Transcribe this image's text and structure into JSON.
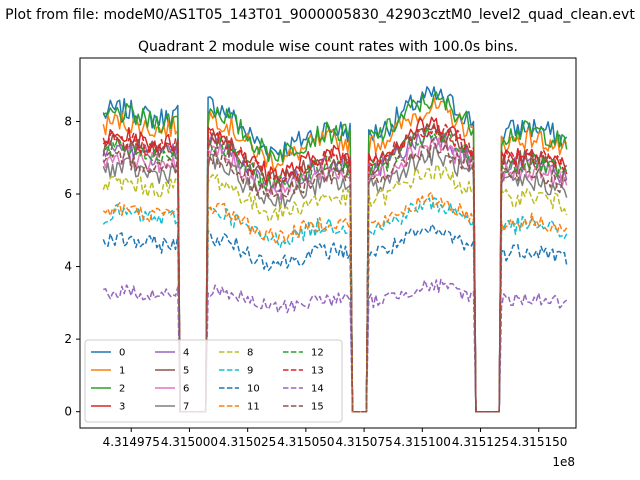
{
  "chart_data": {
    "type": "line",
    "suptitle": "Plot from file: modeM0/AS1T05_143T01_9000005830_42903cztM0_level2_quad_clean.evt",
    "title": "Quadrant 2 module wise count rates with 100.0s bins.",
    "xlabel": "",
    "ylabel": "",
    "x_offset_label": "1e8",
    "xlim": [
      4.314953,
      4.315166
    ],
    "ylim": [
      -0.45,
      9.75
    ],
    "xticks": [
      4.314975,
      4.315,
      4.315025,
      4.31505,
      4.315075,
      4.3151,
      4.315125,
      4.31515
    ],
    "xtick_labels": [
      "4.314975",
      "4.315000",
      "4.315025",
      "4.315050",
      "4.315075",
      "4.315100",
      "4.315125",
      "4.315150"
    ],
    "yticks": [
      0,
      2,
      4,
      6,
      8
    ],
    "ytick_labels": [
      "0",
      "2",
      "4",
      "6",
      "8"
    ],
    "x_range": [
      4.314963,
      4.315162
    ],
    "good_intervals": [
      [
        4.314963,
        4.314995
      ],
      [
        4.315008,
        4.315069
      ],
      [
        4.315077,
        4.315122
      ],
      [
        4.315134,
        4.315162
      ]
    ],
    "gaps": [
      [
        4.314995,
        4.315008
      ],
      [
        4.315069,
        4.315077
      ],
      [
        4.315122,
        4.315134
      ]
    ],
    "legend": {
      "location": "lower-left",
      "columns": 4
    },
    "series": [
      {
        "name": "0",
        "mean": 7.9,
        "noise": 0.32,
        "color": "#1f77b4",
        "dash": "solid"
      },
      {
        "name": "1",
        "mean": 7.6,
        "noise": 0.3,
        "color": "#ff7f0e",
        "dash": "solid"
      },
      {
        "name": "2",
        "mean": 7.8,
        "noise": 0.3,
        "color": "#2ca02c",
        "dash": "solid"
      },
      {
        "name": "3",
        "mean": 7.2,
        "noise": 0.28,
        "color": "#d62728",
        "dash": "solid"
      },
      {
        "name": "4",
        "mean": 6.9,
        "noise": 0.28,
        "color": "#9467bd",
        "dash": "solid"
      },
      {
        "name": "5",
        "mean": 7.0,
        "noise": 0.28,
        "color": "#8c564b",
        "dash": "solid"
      },
      {
        "name": "6",
        "mean": 6.7,
        "noise": 0.28,
        "color": "#e377c2",
        "dash": "solid"
      },
      {
        "name": "7",
        "mean": 6.4,
        "noise": 0.28,
        "color": "#7f7f7f",
        "dash": "solid"
      },
      {
        "name": "8",
        "mean": 6.0,
        "noise": 0.26,
        "color": "#bcbd22",
        "dash": "dashed"
      },
      {
        "name": "9",
        "mean": 5.2,
        "noise": 0.24,
        "color": "#17becf",
        "dash": "dashed"
      },
      {
        "name": "10",
        "mean": 4.5,
        "noise": 0.24,
        "color": "#1f77b4",
        "dash": "dashed"
      },
      {
        "name": "11",
        "mean": 5.3,
        "noise": 0.22,
        "color": "#ff7f0e",
        "dash": "dashed"
      },
      {
        "name": "12",
        "mean": 6.9,
        "noise": 0.26,
        "color": "#2ca02c",
        "dash": "dashed"
      },
      {
        "name": "13",
        "mean": 7.1,
        "noise": 0.26,
        "color": "#d62728",
        "dash": "dashed"
      },
      {
        "name": "14",
        "mean": 3.15,
        "noise": 0.2,
        "color": "#9467bd",
        "dash": "dashed"
      },
      {
        "name": "15",
        "mean": 6.6,
        "noise": 0.26,
        "color": "#8c564b",
        "dash": "dashed"
      }
    ]
  }
}
